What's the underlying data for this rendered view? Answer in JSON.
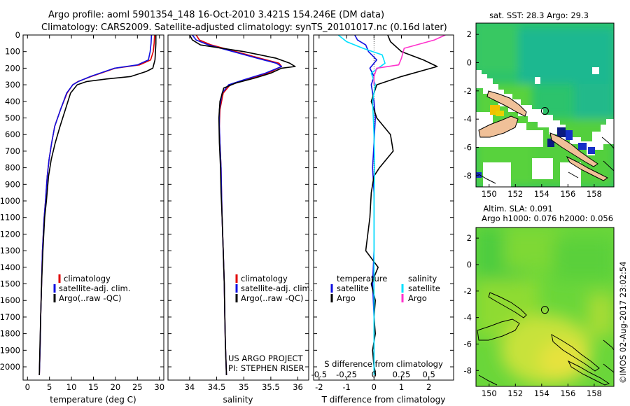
{
  "header": {
    "line1": "Argo profile: aoml 5901354_148 16-Oct-2010 3.421S 154.246E (DM data)",
    "line2": "Climatology: CARS2009. Satellite-adjusted climatology: synTS_20101017.nc (0.16d later)"
  },
  "colors": {
    "climatology": "#e00000",
    "satellite": "#1010e0",
    "argo": "#000000",
    "sal_satellite": "#00e0ff",
    "sal_argo": "#ff33cc"
  },
  "chart_data": [
    {
      "type": "line",
      "name": "temperature-profile",
      "xlabel": "temperature (deg C)",
      "ylabel": "",
      "xlim": [
        -1,
        31
      ],
      "ylim": [
        2080,
        0
      ],
      "xticks": [
        0,
        5,
        10,
        15,
        20,
        25,
        30
      ],
      "yticks": [
        0,
        100,
        200,
        300,
        400,
        500,
        600,
        700,
        800,
        900,
        1000,
        1100,
        1200,
        1300,
        1400,
        1500,
        1600,
        1700,
        1800,
        1900,
        2000
      ],
      "series": [
        {
          "name": "climatology",
          "color": "#e00000",
          "x": [
            28.9,
            28.8,
            28.6,
            28.0,
            25.5,
            20.0,
            14.5,
            11.5,
            10.3,
            9.0,
            7.5,
            6.2,
            5.5,
            4.9,
            4.5,
            4.1,
            3.8,
            3.4,
            3.2,
            3.0,
            2.9,
            2.8,
            2.7
          ],
          "y": [
            0,
            50,
            100,
            150,
            180,
            200,
            250,
            280,
            300,
            350,
            450,
            550,
            650,
            750,
            850,
            1000,
            1100,
            1300,
            1500,
            1700,
            1850,
            1950,
            2050
          ]
        },
        {
          "name": "satellite",
          "color": "#1010e0",
          "x": [
            28.2,
            28.1,
            27.9,
            27.5,
            25.0,
            19.8,
            14.3,
            11.6,
            10.3,
            8.9,
            7.5,
            6.2,
            5.5,
            4.9,
            4.5,
            4.1,
            3.8,
            3.4,
            3.2,
            3.0,
            2.9,
            2.8,
            2.7
          ],
          "y": [
            0,
            50,
            100,
            150,
            180,
            200,
            250,
            280,
            300,
            350,
            450,
            550,
            650,
            750,
            850,
            1000,
            1100,
            1300,
            1500,
            1700,
            1850,
            1950,
            2050
          ]
        },
        {
          "name": "argo",
          "color": "#000000",
          "x": [
            29.2,
            29.2,
            29.1,
            29.0,
            28.5,
            27.0,
            23.5,
            18.0,
            13.5,
            11.3,
            9.8,
            8.6,
            7.4,
            6.3,
            5.4,
            4.8,
            4.3,
            3.9,
            3.5,
            3.2,
            3.0,
            2.8,
            2.7
          ],
          "y": [
            0,
            50,
            100,
            150,
            200,
            220,
            250,
            265,
            280,
            300,
            350,
            450,
            550,
            650,
            750,
            850,
            1000,
            1100,
            1300,
            1500,
            1700,
            1900,
            2050
          ]
        }
      ],
      "legend": {
        "position": "middle-left",
        "entries": [
          "climatology",
          "satellite-adj. clim.",
          "Argo(..raw -QC)"
        ]
      }
    },
    {
      "type": "line",
      "name": "salinity-profile",
      "xlabel": "salinity",
      "xlim": [
        33.6,
        36.2
      ],
      "ylim": [
        2080,
        0
      ],
      "xticks": [
        34,
        34.5,
        35,
        35.5,
        36
      ],
      "xticklabels": [
        "34",
        "34.5",
        "35",
        "35.5",
        "36"
      ],
      "series": [
        {
          "name": "climatology",
          "color": "#e00000",
          "x": [
            34.12,
            34.18,
            34.4,
            34.85,
            35.3,
            35.65,
            35.7,
            35.45,
            35.05,
            34.75,
            34.62,
            34.56,
            34.55,
            34.56,
            34.58,
            34.59,
            34.6,
            34.62,
            34.64,
            34.65,
            34.66,
            34.67,
            34.68
          ],
          "y": [
            0,
            30,
            60,
            100,
            140,
            170,
            190,
            230,
            270,
            300,
            350,
            450,
            550,
            650,
            800,
            950,
            1100,
            1300,
            1500,
            1700,
            1850,
            1950,
            2050
          ]
        },
        {
          "name": "satellite",
          "color": "#1010e0",
          "x": [
            34.05,
            34.12,
            34.35,
            34.8,
            35.25,
            35.6,
            35.7,
            35.4,
            35.0,
            34.72,
            34.6,
            34.55,
            34.55,
            34.56,
            34.58,
            34.59,
            34.6,
            34.62,
            34.64,
            34.65,
            34.66,
            34.67,
            34.68
          ],
          "y": [
            0,
            30,
            60,
            100,
            140,
            170,
            190,
            230,
            270,
            300,
            350,
            450,
            550,
            650,
            800,
            950,
            1100,
            1300,
            1500,
            1700,
            1850,
            1950,
            2050
          ]
        },
        {
          "name": "argo",
          "color": "#000000",
          "x": [
            34.0,
            34.05,
            34.2,
            35.0,
            35.6,
            35.85,
            35.95,
            35.7,
            35.5,
            35.2,
            34.85,
            34.63,
            34.56,
            34.54,
            34.55,
            34.57,
            34.58,
            34.6,
            34.62,
            34.64,
            34.65,
            34.66,
            34.67,
            34.68
          ],
          "y": [
            0,
            30,
            60,
            100,
            140,
            170,
            190,
            200,
            230,
            260,
            290,
            320,
            400,
            500,
            650,
            800,
            950,
            1100,
            1300,
            1500,
            1700,
            1850,
            1950,
            2050
          ]
        }
      ],
      "legend": {
        "position": "middle-left",
        "entries": [
          "climatology",
          "satellite-adj. clim.",
          "Argo(..raw -QC)"
        ]
      },
      "annotations": [
        "US ARGO PROJECT",
        "PI: STEPHEN RISER"
      ]
    },
    {
      "type": "line",
      "name": "difference-profile",
      "xlabel": "T difference from climatology",
      "top_label": "S difference from climatology",
      "xlim": [
        -2.2,
        2.9
      ],
      "ylim": [
        2080,
        0
      ],
      "xticks": [
        -2,
        -1,
        0,
        1,
        2
      ],
      "top_ticks": [
        -0.5,
        -0.25,
        0,
        0.25,
        0.5
      ],
      "top_ticklabels": [
        "-0.5",
        "-0.25",
        "0",
        "0.25",
        "0.5"
      ],
      "series": [
        {
          "name": "temperature satellite",
          "color": "#1010e0",
          "x": [
            -0.7,
            -0.6,
            -0.3,
            -0.2,
            0.1,
            -0.15,
            0.0,
            -0.1,
            0.0,
            0.05,
            0.0,
            -0.05,
            0.0,
            0.0,
            0.0,
            -0.05,
            0.0,
            0.0,
            0.0,
            0.0,
            0.0
          ],
          "y": [
            0,
            30,
            60,
            100,
            150,
            200,
            250,
            300,
            400,
            500,
            650,
            800,
            950,
            1100,
            1300,
            1500,
            1700,
            1850,
            1950,
            2000,
            2050
          ]
        },
        {
          "name": "temperature argo",
          "color": "#000000",
          "x": [
            0.5,
            0.6,
            1.0,
            1.8,
            2.3,
            1.0,
            0.1,
            -0.1,
            0.1,
            0.6,
            0.7,
            0.2,
            0.0,
            -0.1,
            -0.15,
            -0.3,
            0.15,
            -0.1,
            0.05,
            0.0,
            0.05,
            -0.05,
            0.0,
            0.05,
            0.0
          ],
          "y": [
            0,
            40,
            100,
            150,
            190,
            250,
            300,
            400,
            500,
            600,
            700,
            800,
            850,
            950,
            1100,
            1300,
            1400,
            1500,
            1600,
            1700,
            1800,
            1900,
            2000,
            2030,
            2050
          ]
        },
        {
          "name": "salinity satellite",
          "color": "#00e0ff",
          "x": [
            -1.3,
            -1.0,
            -0.4,
            0.3,
            0.4,
            -0.1,
            0.05,
            -0.05,
            0.0,
            0.02,
            0.0,
            0.0,
            0.0,
            0.0
          ],
          "y": [
            0,
            40,
            80,
            120,
            170,
            230,
            300,
            400,
            600,
            800,
            1000,
            1400,
            1800,
            2050
          ]
        },
        {
          "name": "salinity argo",
          "color": "#ff33cc",
          "x": [
            2.6,
            2.2,
            1.1,
            1.0,
            0.9,
            0.1,
            0.0,
            0.0
          ],
          "y": [
            0,
            30,
            80,
            140,
            180,
            200,
            250,
            300
          ]
        }
      ],
      "legend": {
        "position": "middle",
        "group1": "temperature",
        "group2": "salinity",
        "entries1": [
          "satellite",
          "Argo"
        ],
        "entries2": [
          "satellite",
          "Argo"
        ]
      }
    },
    {
      "type": "heatmap",
      "name": "sst-map",
      "title": "sat. SST: 28.3 Argo: 29.3",
      "xlim": [
        149,
        159.5
      ],
      "ylim": [
        -8.8,
        2.8
      ],
      "xticks": [
        150,
        152,
        154,
        156,
        158
      ],
      "yticks": [
        2,
        0,
        -2,
        -4,
        -6,
        -8
      ],
      "marker": {
        "lon": 154.246,
        "lat": -3.421
      }
    },
    {
      "type": "heatmap",
      "name": "sla-map",
      "title_line1": "Altim. SLA: 0.091",
      "title_line2": "Argo h1000: 0.076 h2000: 0.056",
      "xlim": [
        149,
        159.5
      ],
      "ylim": [
        -9.2,
        2.8
      ],
      "xticks": [
        150,
        152,
        154,
        156,
        158
      ],
      "yticks": [
        2,
        0,
        -2,
        -4,
        -6,
        -8
      ],
      "marker": {
        "lon": 154.246,
        "lat": -3.421
      }
    }
  ],
  "watermark": "©IMOS 02-Aug-2017 23:02:54"
}
